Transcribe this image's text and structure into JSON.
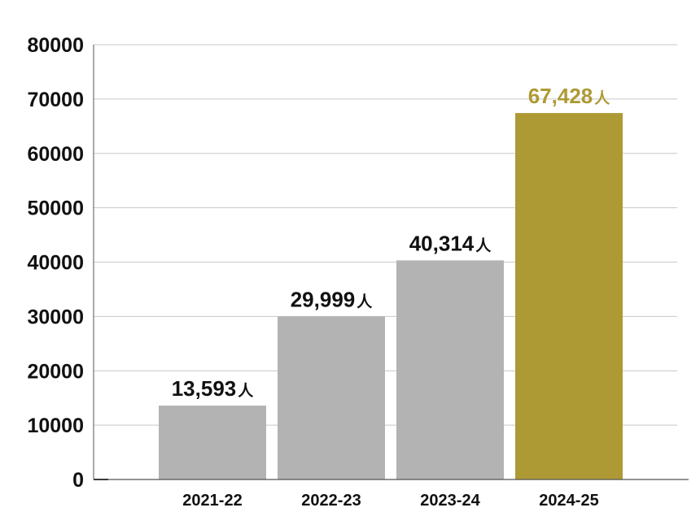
{
  "chart_data": {
    "type": "bar",
    "categories": [
      "2021-22",
      "2022-23",
      "2023-24",
      "2024-25"
    ],
    "values": [
      13593,
      29999,
      40314,
      67428
    ],
    "data_labels": [
      "13,593",
      "29,999",
      "40,314",
      "67,428"
    ],
    "data_label_unit": "人",
    "ylim": [
      0,
      80000
    ],
    "yticks": [
      0,
      10000,
      20000,
      30000,
      40000,
      50000,
      60000,
      70000,
      80000
    ],
    "ytick_labels": [
      "0",
      "10000",
      "20000",
      "30000",
      "40000",
      "50000",
      "60000",
      "70000",
      "80000"
    ],
    "grid": true,
    "legend": "none",
    "colors": {
      "bar_default": "#b3b3b3",
      "bar_highlight": "#ae9a35",
      "label_default": "#111111",
      "label_highlight": "#ae9a35",
      "grid": "#c8c8c8",
      "axis": "#555555"
    },
    "highlight_index": 3
  }
}
